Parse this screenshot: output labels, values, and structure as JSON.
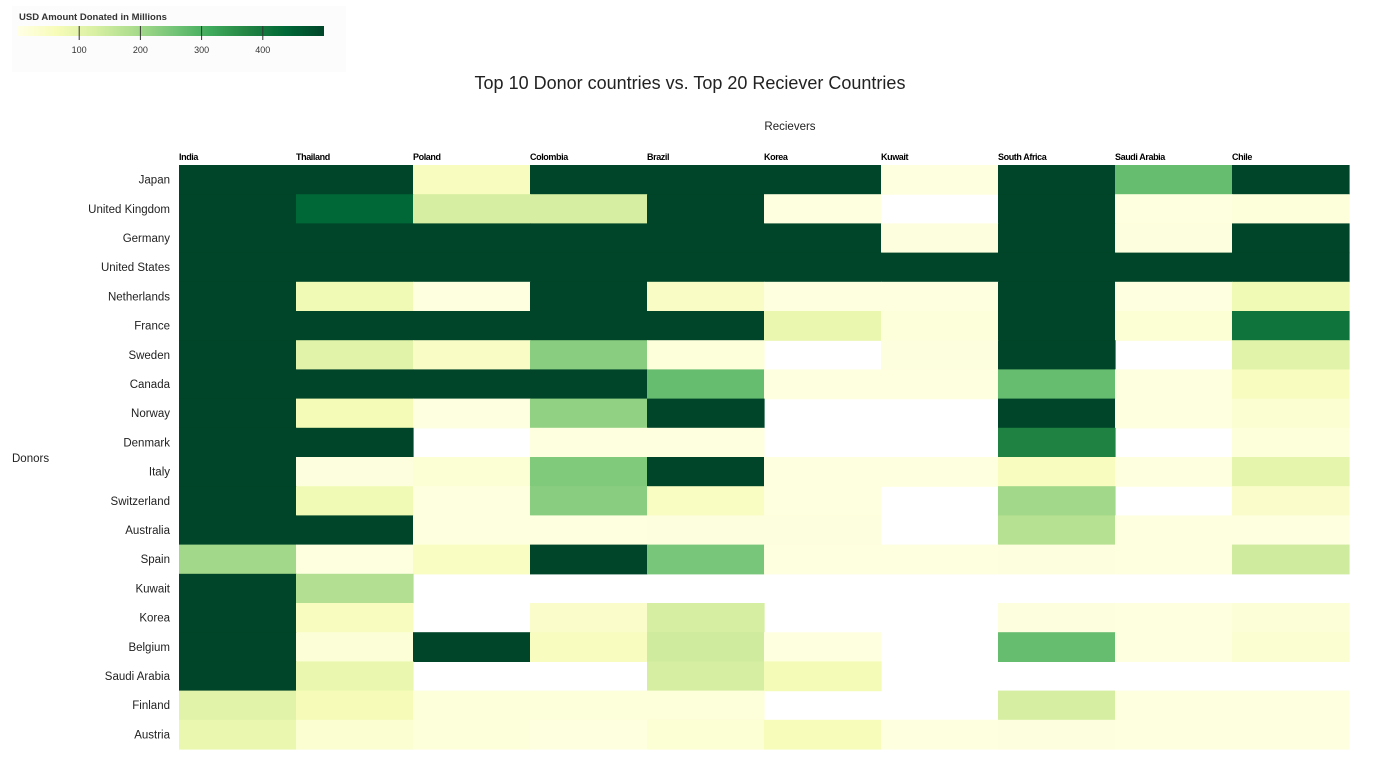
{
  "legend": {
    "title": "USD Amount Donated in Millions",
    "min": 0,
    "max": 500,
    "ticks": [
      100,
      200,
      300,
      400
    ],
    "colors": [
      "#ffffe5",
      "#f7fcb9",
      "#d9f0a3",
      "#addd8e",
      "#78c679",
      "#41ab5d",
      "#238443",
      "#006837",
      "#004529"
    ]
  },
  "chart_data": {
    "type": "heatmap",
    "title": "Top 10 Donor countries vs. Top 20 Reciever Countries",
    "xlabel": "Recievers",
    "ylabel": "Donors",
    "x": [
      "India",
      "Thailand",
      "Poland",
      "Colombia",
      "Brazil",
      "Korea",
      "Kuwait",
      "South Africa",
      "Saudi Arabia",
      "Chile"
    ],
    "y": [
      "Japan",
      "United Kingdom",
      "Germany",
      "United States",
      "Netherlands",
      "France",
      "Sweden",
      "Canada",
      "Norway",
      "Denmark",
      "Italy",
      "Switzerland",
      "Australia",
      "Spain",
      "Kuwait",
      "Korea",
      "Belgium",
      "Saudi Arabia",
      "Finland",
      "Austria"
    ],
    "values": [
      [
        500,
        500,
        55,
        500,
        500,
        500,
        8,
        500,
        270,
        500
      ],
      [
        500,
        440,
        130,
        130,
        500,
        8,
        null,
        500,
        10,
        15
      ],
      [
        500,
        500,
        500,
        500,
        500,
        500,
        12,
        500,
        12,
        500
      ],
      [
        500,
        500,
        500,
        500,
        500,
        500,
        500,
        500,
        500,
        500
      ],
      [
        500,
        75,
        8,
        500,
        45,
        8,
        8,
        500,
        6,
        75
      ],
      [
        500,
        500,
        500,
        500,
        500,
        90,
        15,
        500,
        25,
        410
      ],
      [
        500,
        110,
        45,
        230,
        15,
        null,
        12,
        500,
        null,
        110
      ],
      [
        500,
        500,
        500,
        500,
        270,
        8,
        8,
        270,
        8,
        55
      ],
      [
        500,
        70,
        6,
        220,
        500,
        null,
        null,
        500,
        8,
        30
      ],
      [
        500,
        500,
        null,
        8,
        8,
        null,
        null,
        380,
        null,
        15
      ],
      [
        500,
        12,
        25,
        240,
        500,
        10,
        10,
        55,
        8,
        100
      ],
      [
        500,
        75,
        8,
        230,
        50,
        10,
        null,
        200,
        null,
        40
      ],
      [
        500,
        500,
        8,
        10,
        12,
        12,
        null,
        175,
        8,
        8
      ],
      [
        200,
        8,
        50,
        500,
        250,
        10,
        8,
        12,
        8,
        140
      ],
      [
        500,
        180,
        null,
        null,
        null,
        null,
        null,
        null,
        null,
        null
      ],
      [
        500,
        55,
        null,
        40,
        130,
        null,
        null,
        12,
        8,
        20
      ],
      [
        500,
        20,
        500,
        55,
        140,
        8,
        null,
        270,
        8,
        30
      ],
      [
        500,
        90,
        null,
        null,
        130,
        70,
        null,
        null,
        null,
        null
      ],
      [
        110,
        65,
        15,
        15,
        15,
        null,
        null,
        130,
        8,
        8
      ],
      [
        90,
        30,
        15,
        8,
        25,
        60,
        8,
        12,
        8,
        8
      ]
    ]
  }
}
